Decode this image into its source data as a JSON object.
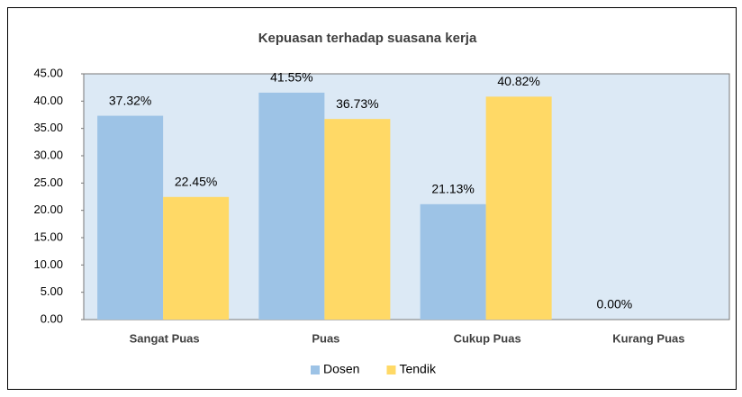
{
  "chart_data": {
    "type": "bar",
    "title": "Kepuasan terhadap suasana kerja",
    "categories": [
      "Sangat Puas",
      "Puas",
      "Cukup Puas",
      "Kurang Puas"
    ],
    "series": [
      {
        "name": "Dosen",
        "color": "#9dc3e6",
        "values": [
          37.32,
          41.55,
          21.13,
          0
        ],
        "value_labels": [
          "37.32%",
          "41.55%",
          "21.13%",
          "0.00%"
        ]
      },
      {
        "name": "Tendik",
        "color": "#ffd966",
        "values": [
          22.45,
          36.73,
          40.82,
          null
        ],
        "value_labels": [
          "22.45%",
          "36.73%",
          "40.82%",
          null
        ]
      }
    ],
    "ylim": [
      0,
      45
    ],
    "yticks": [
      {
        "value": 0,
        "label": "0.00"
      },
      {
        "value": 5,
        "label": "5.00"
      },
      {
        "value": 10,
        "label": "10.00"
      },
      {
        "value": 15,
        "label": "15.00"
      },
      {
        "value": 20,
        "label": "20.00"
      },
      {
        "value": 25,
        "label": "25.00"
      },
      {
        "value": 30,
        "label": "30.00"
      },
      {
        "value": 35,
        "label": "35.00"
      },
      {
        "value": 40,
        "label": "40.00"
      },
      {
        "value": 45,
        "label": "45.00"
      }
    ],
    "grid": false,
    "legend": "bottom"
  }
}
